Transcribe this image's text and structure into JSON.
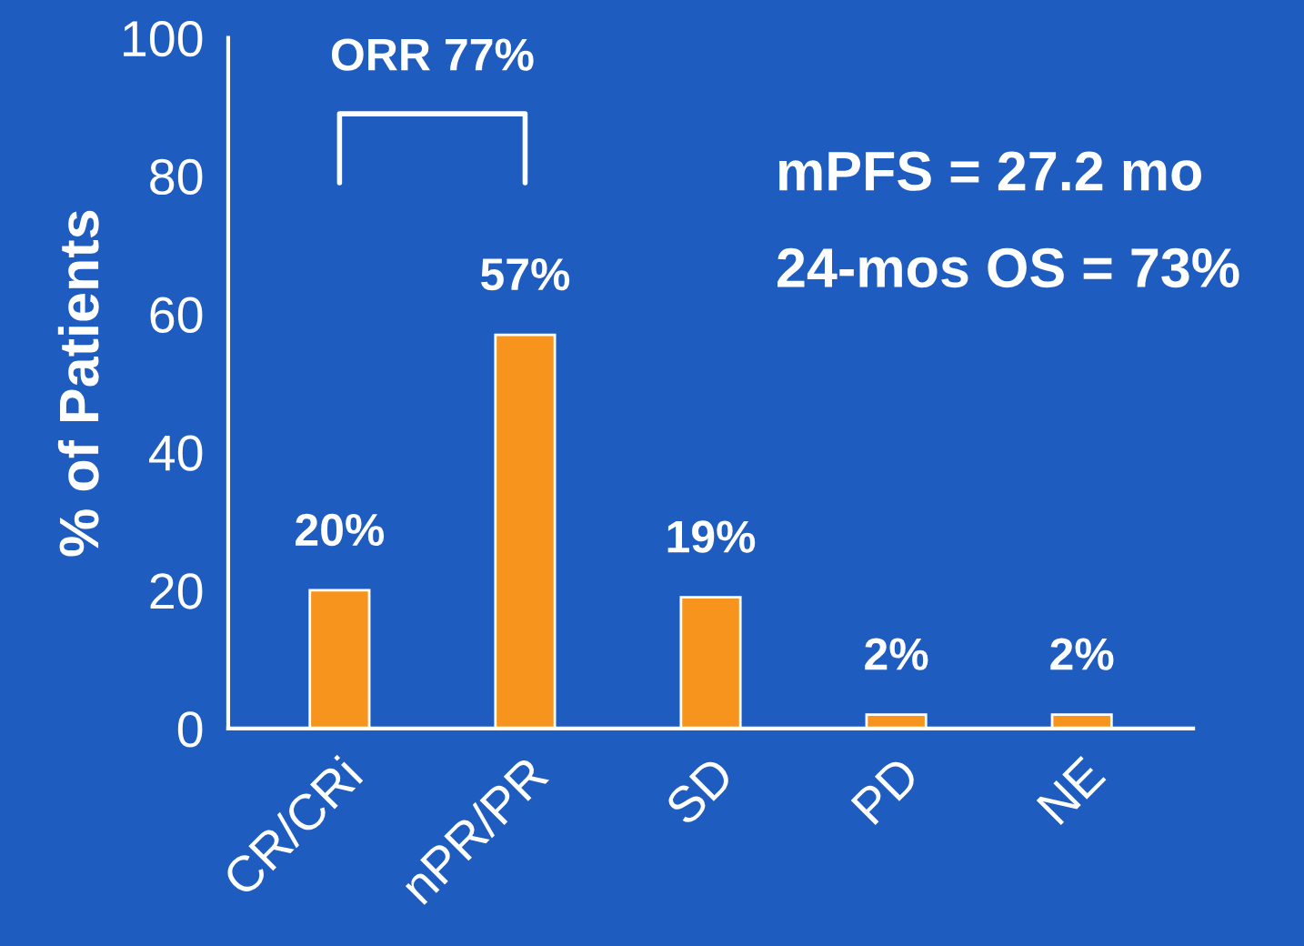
{
  "chart_data": {
    "type": "bar",
    "ylabel": "% of Patients",
    "categories": [
      "CR/CRi",
      "nPR/PR",
      "SD",
      "PD",
      "NE"
    ],
    "values": [
      20,
      57,
      19,
      2,
      2
    ],
    "value_labels": [
      "20%",
      "57%",
      "19%",
      "2%",
      "2%"
    ],
    "color": "#f7941d",
    "ylim": [
      0,
      100
    ],
    "yticks": [
      0,
      20,
      40,
      60,
      80,
      100
    ],
    "grid": false,
    "annotations": [
      "ORR 77%",
      "mPFS = 27.2 mo",
      "24-mos OS = 73%"
    ]
  }
}
